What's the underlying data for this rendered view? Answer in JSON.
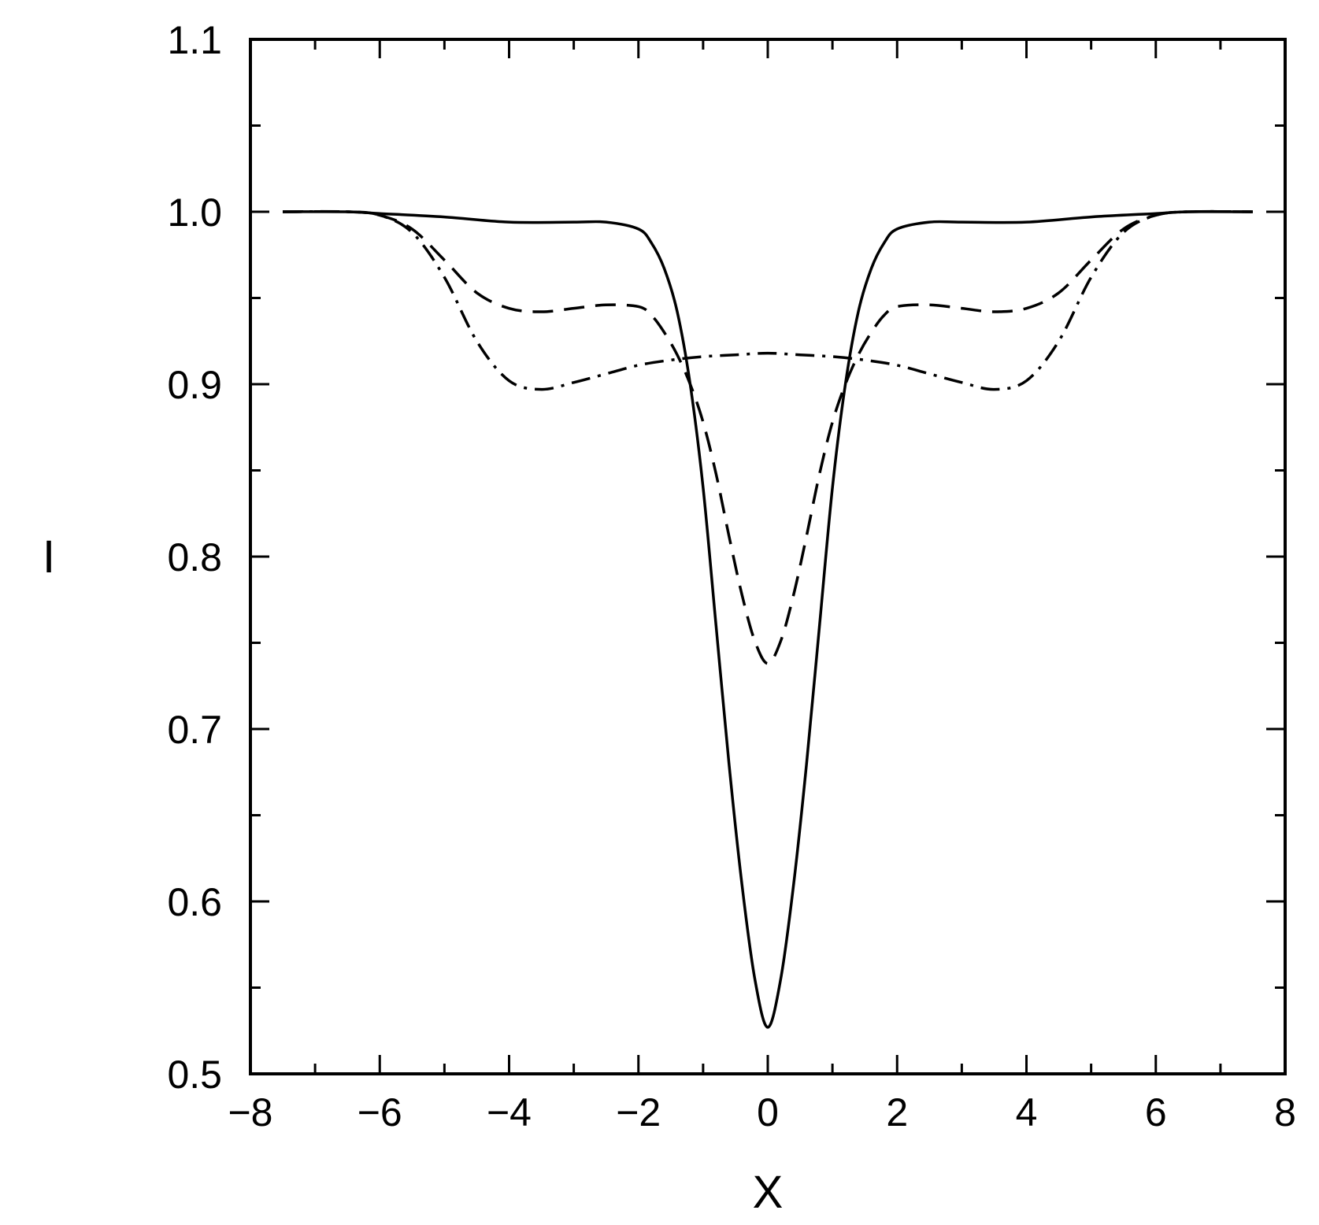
{
  "chart_data": {
    "type": "line",
    "xlabel": "X",
    "ylabel": "I",
    "xlim": [
      -8,
      8
    ],
    "ylim": [
      0.5,
      1.1
    ],
    "grid": false,
    "x_ticks": [
      -8,
      -6,
      -4,
      -2,
      0,
      2,
      4,
      6,
      8
    ],
    "x_tick_labels": [
      "−8",
      "−6",
      "−4",
      "−2",
      "0",
      "2",
      "4",
      "6",
      "8"
    ],
    "x_minor_step": 1,
    "y_ticks": [
      0.5,
      0.6,
      0.7,
      0.8,
      0.9,
      1.0,
      1.1
    ],
    "y_tick_labels": [
      "0.5",
      "0.6",
      "0.7",
      "0.8",
      "0.9",
      "1.0",
      "1.1"
    ],
    "y_minor_step": 0.05,
    "series": [
      {
        "line_style": "solid",
        "x": [
          -7.5,
          -6.5,
          -6,
          -5,
          -4,
          -3,
          -2.5,
          -2,
          -1.8,
          -1.6,
          -1.4,
          -1.2,
          -1,
          -0.8,
          -0.6,
          -0.4,
          -0.2,
          0,
          0.2,
          0.4,
          0.6,
          0.8,
          1,
          1.2,
          1.4,
          1.6,
          1.8,
          2,
          2.5,
          3,
          4,
          5,
          6,
          6.5,
          7.5
        ],
        "y": [
          1.0,
          1.0,
          0.999,
          0.997,
          0.994,
          0.994,
          0.994,
          0.99,
          0.982,
          0.967,
          0.942,
          0.9,
          0.84,
          0.76,
          0.68,
          0.61,
          0.555,
          0.527,
          0.555,
          0.61,
          0.68,
          0.76,
          0.84,
          0.9,
          0.942,
          0.967,
          0.982,
          0.99,
          0.994,
          0.994,
          0.994,
          0.997,
          0.999,
          1.0,
          1.0
        ]
      },
      {
        "line_style": "dashed",
        "x": [
          -7.5,
          -6.5,
          -6,
          -5.5,
          -5,
          -4.5,
          -4,
          -3.5,
          -3,
          -2.5,
          -2,
          -1.8,
          -1.6,
          -1.4,
          -1.2,
          -1,
          -0.8,
          -0.6,
          -0.4,
          -0.2,
          0,
          0.2,
          0.4,
          0.6,
          0.8,
          1,
          1.2,
          1.4,
          1.6,
          1.8,
          2,
          2.5,
          3,
          3.5,
          4,
          4.5,
          5,
          5.5,
          6,
          6.5,
          7.5
        ],
        "y": [
          1.0,
          1.0,
          0.998,
          0.99,
          0.972,
          0.953,
          0.944,
          0.942,
          0.944,
          0.946,
          0.945,
          0.94,
          0.93,
          0.917,
          0.9,
          0.878,
          0.848,
          0.812,
          0.778,
          0.751,
          0.738,
          0.751,
          0.778,
          0.812,
          0.848,
          0.878,
          0.9,
          0.917,
          0.93,
          0.94,
          0.945,
          0.946,
          0.944,
          0.942,
          0.944,
          0.953,
          0.972,
          0.99,
          0.998,
          1.0,
          1.0
        ]
      },
      {
        "line_style": "dash-dot",
        "x": [
          -7.5,
          -6.5,
          -6,
          -5.5,
          -5,
          -4.5,
          -4,
          -3.5,
          -3,
          -2.5,
          -2,
          -1.5,
          -1,
          -0.5,
          0,
          0.5,
          1,
          1.5,
          2,
          2.5,
          3,
          3.5,
          4,
          4.5,
          5,
          5.5,
          6,
          6.5,
          7.5
        ],
        "y": [
          1.0,
          1.0,
          0.998,
          0.988,
          0.962,
          0.925,
          0.902,
          0.897,
          0.901,
          0.906,
          0.911,
          0.914,
          0.916,
          0.917,
          0.918,
          0.917,
          0.916,
          0.914,
          0.911,
          0.906,
          0.901,
          0.897,
          0.902,
          0.925,
          0.962,
          0.988,
          0.998,
          1.0,
          1.0
        ]
      }
    ]
  }
}
